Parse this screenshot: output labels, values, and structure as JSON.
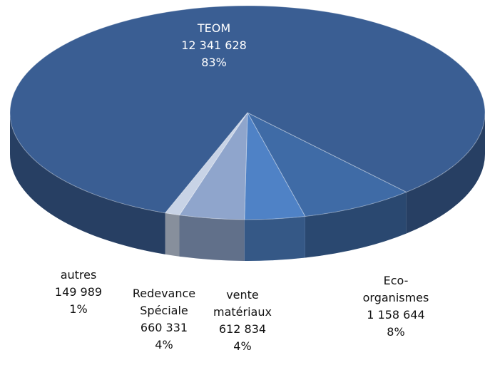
{
  "chart_data": {
    "type": "pie",
    "categories": [
      "Eco-organismes",
      "vente matériaux",
      "Redevance Spéciale",
      "autres",
      "TEOM"
    ],
    "values": [
      1158644,
      612834,
      660331,
      149989,
      12341628
    ],
    "value_labels": [
      "1 158 644",
      "612 834",
      "660 331",
      "149 989",
      "12 341 628"
    ],
    "percent_labels": [
      "8%",
      "4%",
      "4%",
      "1%",
      "83%"
    ],
    "colors": [
      "#3f6ba6",
      "#4f82c6",
      "#8fa5cc",
      "#c8d3e6",
      "#3a5e93"
    ]
  }
}
